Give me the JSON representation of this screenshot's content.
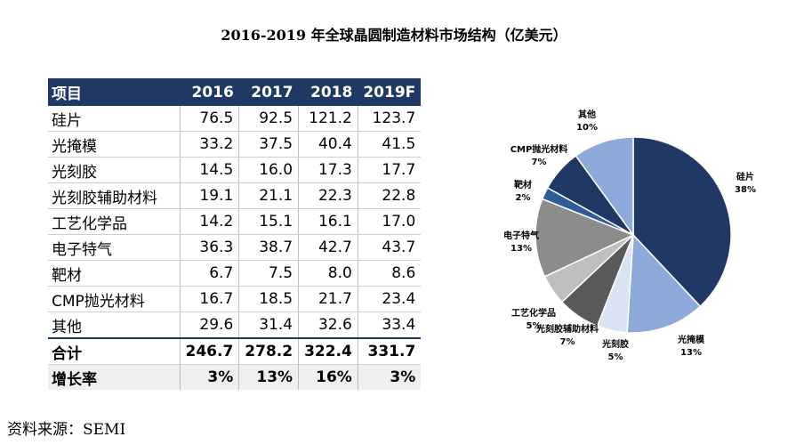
{
  "title": "2016-2019 年全球晶圆制造材料市场结构（亿美元）",
  "source": "资料来源：SEMI",
  "chart_data": [
    {
      "type": "table",
      "columns": [
        "项目",
        "2016",
        "2017",
        "2018",
        "2019F"
      ],
      "rows": [
        [
          "硅片",
          "76.5",
          "92.5",
          "121.2",
          "123.7"
        ],
        [
          "光掩模",
          "33.2",
          "37.5",
          "40.4",
          "41.5"
        ],
        [
          "光刻胶",
          "14.5",
          "16.0",
          "17.3",
          "17.7"
        ],
        [
          "光刻胶辅助材料",
          "19.1",
          "21.1",
          "22.3",
          "22.8"
        ],
        [
          "工艺化学品",
          "14.2",
          "15.1",
          "16.1",
          "17.0"
        ],
        [
          "电子特气",
          "36.3",
          "38.7",
          "42.7",
          "43.7"
        ],
        [
          "靶材",
          "6.7",
          "7.5",
          "8.0",
          "8.6"
        ],
        [
          "CMP抛光材料",
          "16.7",
          "18.5",
          "21.7",
          "23.4"
        ],
        [
          "其他",
          "29.6",
          "31.4",
          "32.6",
          "33.4"
        ]
      ],
      "total": [
        "合计",
        "246.7",
        "278.2",
        "322.4",
        "331.7"
      ],
      "growth": [
        "增长率",
        "3%",
        "13%",
        "16%",
        "3%"
      ]
    },
    {
      "type": "pie",
      "slices": [
        {
          "name": "硅片",
          "value": 38,
          "label": "38%",
          "color": "#1f3864"
        },
        {
          "name": "光掩模",
          "value": 13,
          "label": "13%",
          "color": "#8eaadb"
        },
        {
          "name": "光刻胶",
          "value": 5,
          "label": "5%",
          "color": "#dae3f3"
        },
        {
          "name": "光刻胶辅助材料",
          "value": 7,
          "label": "7%",
          "color": "#595959"
        },
        {
          "name": "工艺化学品",
          "value": 5,
          "label": "5%",
          "color": "#bfbfbf"
        },
        {
          "name": "电子特气",
          "value": 13,
          "label": "13%",
          "color": "#8c8c8c"
        },
        {
          "name": "靶材",
          "value": 2,
          "label": "2%",
          "color": "#2e5c9a"
        },
        {
          "name": "CMP抛光材料",
          "value": 7,
          "label": "7%",
          "color": "#1f3864"
        },
        {
          "name": "其他",
          "value": 10,
          "label": "10%",
          "color": "#8eaadb"
        }
      ]
    }
  ]
}
